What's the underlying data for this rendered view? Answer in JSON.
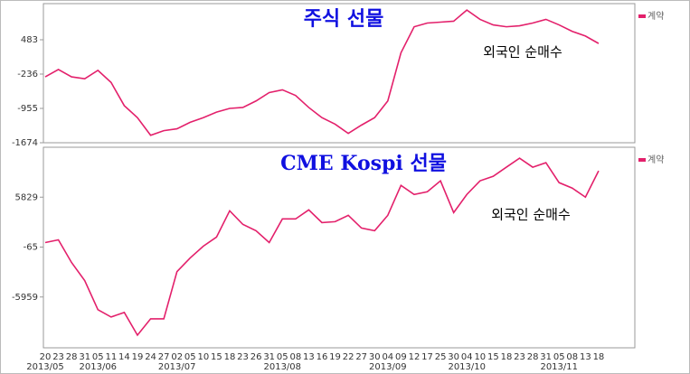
{
  "chart_data": [
    {
      "type": "line",
      "title": "주식 선물",
      "annotation": "외국인 순매수",
      "ylim": [
        -1674,
        1240
      ],
      "yticks": [
        -1674,
        -955,
        -236,
        483
      ],
      "series": [
        {
          "name": "계약",
          "color": "#e3206b",
          "values": [
            -294,
            -139,
            -294,
            -333,
            -158,
            -411,
            -897,
            -1149,
            -1518,
            -1421,
            -1382,
            -1246,
            -1149,
            -1033,
            -955,
            -935,
            -799,
            -624,
            -566,
            -683,
            -935,
            -1149,
            -1285,
            -1479,
            -1305,
            -1149,
            -799,
            211,
            755,
            833,
            852,
            872,
            1105,
            910,
            794,
            755,
            775,
            833,
            910,
            794,
            658,
            561,
            405
          ]
        }
      ]
    },
    {
      "type": "line",
      "title": "CME Kospi 선물",
      "annotation": "외국인 순매수",
      "ylim": [
        -11959,
        11723
      ],
      "yticks": [
        -5959,
        -65,
        5829
      ],
      "categories": [
        "20",
        "23",
        "28",
        "31",
        "05",
        "11",
        "14",
        "19",
        "24",
        "27",
        "02",
        "05",
        "10",
        "15",
        "18",
        "23",
        "26",
        "31",
        "05",
        "08",
        "13",
        "16",
        "19",
        "22",
        "27",
        "30",
        "04",
        "09",
        "12",
        "17",
        "25",
        "30",
        "04",
        "10",
        "15",
        "18",
        "23",
        "28",
        "31",
        "05",
        "08",
        "13",
        "18"
      ],
      "month_labels": [
        "2013/05",
        null,
        null,
        null,
        "2013/06",
        null,
        null,
        null,
        null,
        null,
        "2013/07",
        null,
        null,
        null,
        null,
        null,
        null,
        null,
        "2013/08",
        null,
        null,
        null,
        null,
        null,
        null,
        null,
        "2013/09",
        null,
        null,
        null,
        null,
        null,
        "2013/10",
        null,
        null,
        null,
        null,
        null,
        null,
        "2013/11",
        null,
        null,
        null
      ],
      "series": [
        {
          "name": "계약",
          "color": "#e3206b",
          "values": [
            469,
            791,
            -1889,
            -4033,
            -7464,
            -8321,
            -7785,
            -10465,
            -8536,
            -8536,
            -2961,
            -1353,
            40,
            1112,
            4221,
            2613,
            1863,
            469,
            3257,
            3257,
            4328,
            2828,
            2935,
            3685,
            2184,
            1863,
            3685,
            7222,
            6151,
            6472,
            7759,
            4007,
            6151,
            7759,
            8295,
            9367,
            10439,
            9367,
            9903,
            7544,
            6901,
            5829,
            8938
          ]
        }
      ]
    }
  ]
}
